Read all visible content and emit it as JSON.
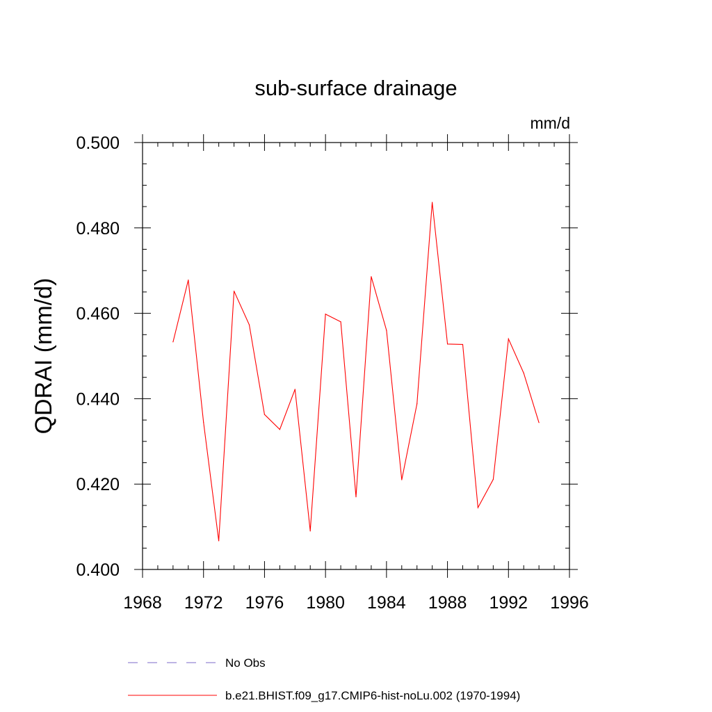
{
  "chart_data": {
    "type": "line",
    "title": "sub-surface drainage",
    "units_label": "mm/d",
    "ylabel": "QDRAI  (mm/d)",
    "xlabel": "",
    "xlim": [
      1968,
      1996
    ],
    "ylim": [
      0.4,
      0.5
    ],
    "x_ticks": [
      1968,
      1972,
      1976,
      1980,
      1984,
      1988,
      1992,
      1996
    ],
    "x_tick_labels": [
      "1968",
      "1972",
      "1976",
      "1980",
      "1984",
      "1988",
      "1992",
      "1996"
    ],
    "y_ticks": [
      0.4,
      0.42,
      0.44,
      0.46,
      0.48,
      0.5
    ],
    "y_tick_labels": [
      "0.400",
      "0.420",
      "0.440",
      "0.460",
      "0.480",
      "0.500"
    ],
    "grid": false,
    "legend_position": "bottom",
    "series": [
      {
        "name": "b.e21.BHIST.f09_g17.CMIP6-hist-noLu.002 (1970-1994)",
        "color": "#ff0000",
        "dash": "solid",
        "x": [
          1970,
          1971,
          1972,
          1973,
          1974,
          1975,
          1976,
          1977,
          1978,
          1979,
          1980,
          1981,
          1982,
          1983,
          1984,
          1985,
          1986,
          1987,
          1988,
          1989,
          1990,
          1991,
          1992,
          1993,
          1994
        ],
        "y": [
          0.4533,
          0.4678,
          0.4345,
          0.4067,
          0.4652,
          0.4573,
          0.4363,
          0.4328,
          0.4422,
          0.409,
          0.4598,
          0.458,
          0.417,
          0.4686,
          0.456,
          0.421,
          0.4388,
          0.486,
          0.4528,
          0.4527,
          0.4145,
          0.4211,
          0.454,
          0.446,
          0.4344
        ]
      }
    ],
    "legend": [
      {
        "label": "No Obs",
        "color": "#7b68c8",
        "dash": "dashed"
      },
      {
        "label": "b.e21.BHIST.f09_g17.CMIP6-hist-noLu.002 (1970-1994)",
        "color": "#ff0000",
        "dash": "solid"
      }
    ]
  }
}
